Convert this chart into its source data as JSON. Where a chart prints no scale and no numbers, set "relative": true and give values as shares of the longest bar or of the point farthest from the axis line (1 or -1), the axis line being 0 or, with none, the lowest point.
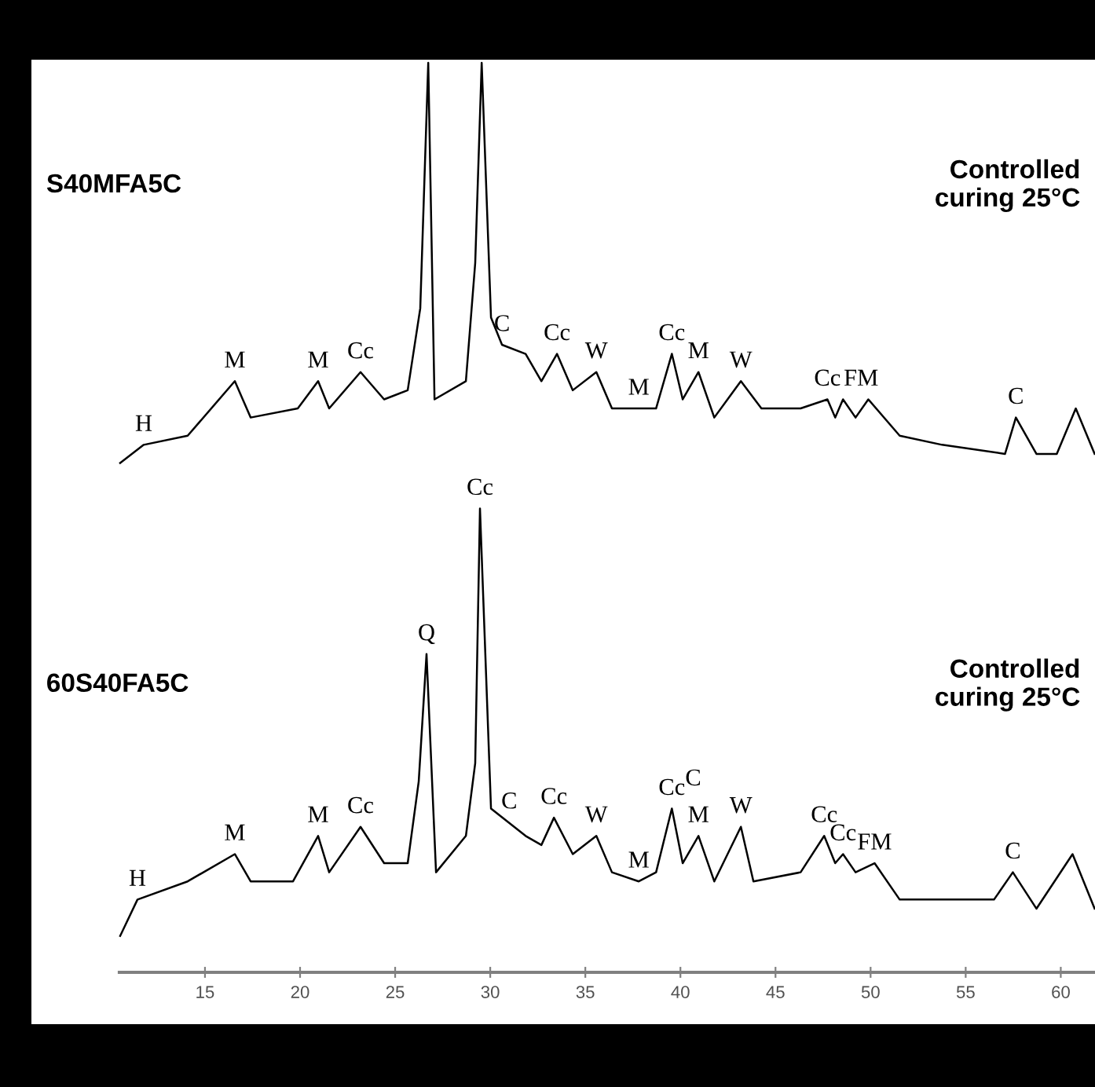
{
  "chart_data": {
    "type": "line",
    "relative": true,
    "xlim": [
      10.5,
      61.8
    ],
    "xticks": [
      15,
      20,
      25,
      30,
      35,
      40,
      45,
      50,
      55,
      60
    ],
    "grid": false,
    "marker": "none",
    "line_style": "solid",
    "series": [
      {
        "color": "#000000",
        "x": [
          10.54,
          11.78,
          14.09,
          16.57,
          17.4,
          19.88,
          20.95,
          21.53,
          23.18,
          24.42,
          25.66,
          26.32,
          26.74,
          27.07,
          28.72,
          29.21,
          29.55,
          30.04,
          30.62,
          31.86,
          32.69,
          33.51,
          34.34,
          35.58,
          36.4,
          37.81,
          38.72,
          39.55,
          40.12,
          40.95,
          41.78,
          43.18,
          44.26,
          46.32,
          47.73,
          48.14,
          48.55,
          49.21,
          49.88,
          51.53,
          53.76,
          57.07,
          57.64,
          58.72,
          59.79,
          60.79,
          61.78
        ],
        "values": [
          0.56,
          0.58,
          0.59,
          0.65,
          0.61,
          0.62,
          0.65,
          0.62,
          0.66,
          0.63,
          0.64,
          0.73,
          1.0,
          0.63,
          0.65,
          0.78,
          1.0,
          0.72,
          0.69,
          0.68,
          0.65,
          0.68,
          0.64,
          0.66,
          0.62,
          0.62,
          0.62,
          0.68,
          0.63,
          0.66,
          0.61,
          0.65,
          0.62,
          0.62,
          0.63,
          0.61,
          0.63,
          0.61,
          0.63,
          0.59,
          0.58,
          0.57,
          0.61,
          0.57,
          0.57,
          0.62,
          0.57
        ]
      },
      {
        "color": "#000000",
        "x": [
          10.54,
          11.45,
          14.09,
          16.57,
          17.4,
          19.63,
          20.95,
          21.53,
          23.18,
          24.42,
          25.66,
          26.24,
          26.65,
          27.15,
          28.72,
          29.21,
          29.46,
          30.04,
          31.86,
          32.69,
          33.35,
          34.34,
          35.58,
          36.4,
          37.81,
          38.72,
          39.55,
          40.12,
          40.95,
          41.78,
          43.18,
          43.84,
          46.32,
          47.56,
          48.14,
          48.55,
          49.21,
          50.21,
          51.53,
          53.76,
          56.49,
          57.48,
          58.72,
          60.62,
          61.78
        ],
        "values": [
          0.04,
          0.08,
          0.1,
          0.13,
          0.1,
          0.1,
          0.15,
          0.11,
          0.16,
          0.12,
          0.12,
          0.21,
          0.35,
          0.11,
          0.15,
          0.23,
          0.51,
          0.18,
          0.15,
          0.14,
          0.17,
          0.13,
          0.15,
          0.11,
          0.1,
          0.11,
          0.18,
          0.12,
          0.15,
          0.1,
          0.16,
          0.1,
          0.11,
          0.15,
          0.12,
          0.13,
          0.11,
          0.12,
          0.08,
          0.08,
          0.08,
          0.11,
          0.07,
          0.13,
          0.07
        ]
      }
    ],
    "annotations": [
      "S40MFA5C",
      "Controlled\ncuring 25°C",
      "60S40FA5C",
      "Controlled\ncuring 25°C",
      "C",
      {
        "text": "H",
        "x": 11.78,
        "y": 0.58
      },
      {
        "text": "M",
        "x": 16.57,
        "y": 0.65
      },
      {
        "text": "M",
        "x": 20.95,
        "y": 0.65
      },
      {
        "text": "Cc",
        "x": 23.18,
        "y": 0.66
      },
      {
        "text": "C",
        "x": 30.62,
        "y": 0.69
      },
      {
        "text": "Cc",
        "x": 33.51,
        "y": 0.68
      },
      {
        "text": "W",
        "x": 35.58,
        "y": 0.66
      },
      {
        "text": "M",
        "x": 37.81,
        "y": 0.62
      },
      {
        "text": "Cc",
        "x": 39.55,
        "y": 0.68
      },
      {
        "text": "M",
        "x": 40.95,
        "y": 0.66
      },
      {
        "text": "W",
        "x": 43.18,
        "y": 0.65
      },
      {
        "text": "Cc",
        "x": 47.73,
        "y": 0.63
      },
      {
        "text": "FM",
        "x": 49.5,
        "y": 0.63
      },
      {
        "text": "C",
        "x": 57.64,
        "y": 0.61
      },
      {
        "text": "H",
        "x": 11.45,
        "y": 0.08
      },
      {
        "text": "M",
        "x": 16.57,
        "y": 0.13
      },
      {
        "text": "M",
        "x": 20.95,
        "y": 0.15
      },
      {
        "text": "Cc",
        "x": 23.18,
        "y": 0.16
      },
      {
        "text": "Q",
        "x": 26.65,
        "y": 0.35
      },
      {
        "text": "Cc",
        "x": 29.46,
        "y": 0.51
      },
      {
        "text": "C",
        "x": 31.0,
        "y": 0.165
      },
      {
        "text": "Cc",
        "x": 33.35,
        "y": 0.17
      },
      {
        "text": "W",
        "x": 35.58,
        "y": 0.15
      },
      {
        "text": "M",
        "x": 37.81,
        "y": 0.1
      },
      {
        "text": "Cc",
        "x": 39.55,
        "y": 0.18
      },
      {
        "text": "M",
        "x": 40.95,
        "y": 0.15
      },
      {
        "text": "W",
        "x": 43.18,
        "y": 0.16
      },
      {
        "text": "Cc",
        "x": 47.56,
        "y": 0.15
      },
      {
        "text": "Cc",
        "x": 48.55,
        "y": 0.13
      },
      {
        "text": "FM",
        "x": 50.21,
        "y": 0.12
      },
      {
        "text": "C",
        "x": 57.48,
        "y": 0.11
      }
    ]
  }
}
